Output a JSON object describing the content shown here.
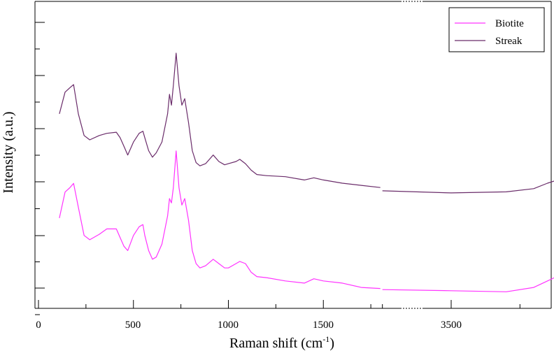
{
  "chart_data": {
    "type": "line",
    "xlabel": "Raman shift (cm",
    "xlabel_sup": "-1",
    "xlabel_close": ")",
    "ylabel": "Intensity (a.u.)",
    "x_tick_labels": [
      "0",
      "500",
      "1000",
      "1500",
      "3500"
    ],
    "axis_break": true,
    "grid": false,
    "legend_position": "top-right",
    "colors": {
      "Biotite": "#ff33ff",
      "Streak": "#6a2c6a"
    },
    "series": [
      {
        "name": "Biotite",
        "color": "#ff33ff",
        "x": [
          110,
          140,
          165,
          185,
          210,
          240,
          270,
          320,
          360,
          410,
          430,
          450,
          470,
          500,
          530,
          550,
          560,
          580,
          600,
          620,
          650,
          680,
          690,
          700,
          710,
          725,
          740,
          755,
          770,
          790,
          810,
          830,
          850,
          880,
          920,
          950,
          980,
          1000,
          1040,
          1060,
          1090,
          1120,
          1150,
          1200,
          1300,
          1400,
          1450,
          1500,
          1600,
          1700,
          1800,
          3250,
          3500,
          3700,
          3800,
          3850,
          3900,
          3950,
          4000,
          4100,
          4200
        ],
        "y": [
          3.1,
          4.3,
          4.5,
          4.7,
          3.6,
          2.3,
          2.1,
          2.35,
          2.6,
          2.6,
          2.2,
          1.8,
          1.6,
          2.3,
          2.7,
          2.8,
          2.3,
          1.6,
          1.2,
          1.3,
          1.9,
          3.2,
          4.0,
          3.8,
          4.5,
          6.2,
          4.5,
          3.7,
          4.0,
          3.0,
          1.6,
          1.0,
          0.8,
          0.9,
          1.2,
          1.0,
          0.8,
          0.8,
          1.0,
          1.1,
          1.0,
          0.6,
          0.4,
          0.35,
          0.2,
          0.1,
          0.3,
          0.2,
          0.1,
          -0.1,
          -0.15,
          -0.2,
          -0.25,
          -0.3,
          -0.1,
          0.2,
          0.5,
          0.2,
          -0.3,
          -0.4,
          -0.6
        ]
      },
      {
        "name": "Streak",
        "color": "#6a2c6a",
        "x": [
          110,
          140,
          165,
          185,
          210,
          240,
          270,
          320,
          360,
          410,
          430,
          450,
          470,
          500,
          530,
          550,
          560,
          580,
          600,
          620,
          650,
          680,
          690,
          700,
          710,
          725,
          740,
          755,
          770,
          790,
          810,
          830,
          850,
          880,
          920,
          950,
          980,
          1000,
          1040,
          1060,
          1090,
          1120,
          1150,
          1200,
          1300,
          1400,
          1450,
          1500,
          1600,
          1700,
          1800,
          3250,
          3500,
          3700,
          3800,
          3850,
          3900,
          3950,
          4000,
          4100,
          4200
        ],
        "y": [
          3.2,
          4.2,
          4.4,
          4.55,
          3.2,
          2.2,
          2.0,
          2.2,
          2.3,
          2.35,
          2.1,
          1.7,
          1.3,
          1.9,
          2.3,
          2.4,
          2.1,
          1.5,
          1.2,
          1.4,
          1.9,
          3.2,
          4.1,
          3.6,
          4.5,
          6.0,
          4.5,
          3.6,
          3.9,
          2.8,
          1.5,
          0.95,
          0.8,
          0.9,
          1.3,
          1.0,
          0.85,
          0.9,
          1.0,
          1.1,
          0.9,
          0.6,
          0.4,
          0.35,
          0.3,
          0.15,
          0.25,
          0.15,
          0.0,
          -0.1,
          -0.2,
          -0.35,
          -0.45,
          -0.4,
          -0.25,
          0.0,
          0.2,
          0.0,
          -0.35,
          -0.45,
          -0.55
        ]
      }
    ]
  }
}
